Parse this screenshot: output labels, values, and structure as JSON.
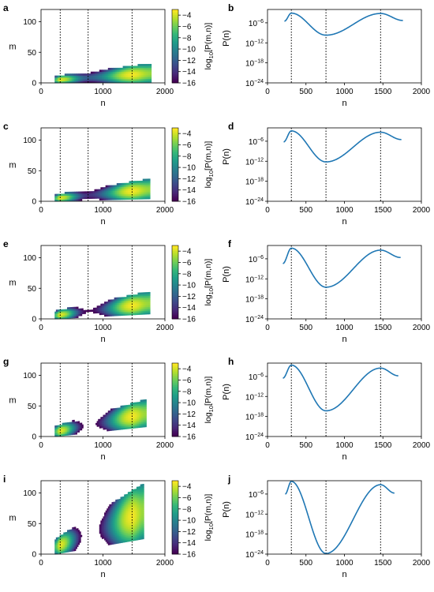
{
  "colormap": [
    "#440154",
    "#482878",
    "#3e4989",
    "#31688e",
    "#26828e",
    "#1f9e89",
    "#35b779",
    "#6ece58",
    "#b5de2b",
    "#fde725"
  ],
  "line_color": "#1f77b4",
  "chart_data": [
    {
      "type": "heatmap",
      "panel": "a",
      "xlabel": "n",
      "ylabel": "m",
      "colorbar_label": "log10[P(m,n)]",
      "xlim": [
        0,
        2000
      ],
      "ylim": [
        0,
        120
      ],
      "xticks": [
        0,
        1000,
        2000
      ],
      "yticks": [
        0,
        50,
        100
      ],
      "clim": [
        -16,
        -3
      ],
      "colorbar_ticks": [
        -4,
        -6,
        -8,
        -10,
        -12,
        -14,
        -16
      ],
      "vlines": [
        310,
        760,
        1470
      ],
      "band": {
        "n_range": [
          220,
          1780
        ],
        "m_center_start": 5,
        "m_center_end": 16,
        "width_start": 5,
        "width_end": 15
      },
      "logP_profile": {
        "n": [
          220,
          310,
          760,
          1470,
          1780
        ],
        "logP": [
          -7,
          -3.5,
          -12,
          -3.2,
          -5
        ]
      }
    },
    {
      "type": "line",
      "panel": "b",
      "xlabel": "n",
      "ylabel": "P(n)",
      "yscale": "log",
      "xlim": [
        0,
        2000
      ],
      "ylim": [
        1e-24,
        0.01
      ],
      "xticks": [
        0,
        500,
        1000,
        1500,
        2000
      ],
      "yticks": [
        "10^-6",
        "10^-12",
        "10^-18",
        "10^-24"
      ],
      "vlines": [
        310,
        760,
        1470
      ],
      "x": [
        220,
        310,
        760,
        1470,
        1760
      ],
      "logy": [
        -5.5,
        -3.1,
        -9.7,
        -3.2,
        -5.3
      ]
    },
    {
      "type": "heatmap",
      "panel": "c",
      "xlabel": "n",
      "ylabel": "m",
      "colorbar_label": "log10[P(m,n)]",
      "xlim": [
        0,
        2000
      ],
      "ylim": [
        0,
        120
      ],
      "xticks": [
        0,
        1000,
        2000
      ],
      "yticks": [
        0,
        50,
        100
      ],
      "clim": [
        -16,
        -3
      ],
      "colorbar_ticks": [
        -4,
        -6,
        -8,
        -10,
        -12,
        -14,
        -16
      ],
      "vlines": [
        310,
        760,
        1470
      ],
      "band": {
        "n_range": [
          220,
          1760
        ],
        "m_center_start": 5,
        "m_center_end": 20,
        "width_start": 5,
        "width_end": 16
      },
      "logP_profile": {
        "n": [
          220,
          310,
          760,
          1470,
          1760
        ],
        "logP": [
          -7,
          -3.5,
          -14,
          -3.2,
          -5
        ]
      }
    },
    {
      "type": "line",
      "panel": "d",
      "xlabel": "n",
      "ylabel": "P(n)",
      "yscale": "log",
      "xlim": [
        0,
        2000
      ],
      "ylim": [
        1e-24,
        0.01
      ],
      "xticks": [
        0,
        500,
        1000,
        1500,
        2000
      ],
      "yticks": [
        "10^-6",
        "10^-12",
        "10^-18",
        "10^-24"
      ],
      "vlines": [
        310,
        760,
        1470
      ],
      "x": [
        210,
        310,
        760,
        1470,
        1740
      ],
      "logy": [
        -6.2,
        -2.9,
        -12.2,
        -3.3,
        -5.5
      ]
    },
    {
      "type": "heatmap",
      "panel": "e",
      "xlabel": "n",
      "ylabel": "m",
      "colorbar_label": "log10[P(m,n)]",
      "xlim": [
        0,
        2000
      ],
      "ylim": [
        0,
        120
      ],
      "xticks": [
        0,
        1000,
        2000
      ],
      "yticks": [
        0,
        50,
        100
      ],
      "clim": [
        -16,
        -3
      ],
      "colorbar_ticks": [
        -4,
        -6,
        -8,
        -10,
        -12,
        -14,
        -16
      ],
      "vlines": [
        310,
        760,
        1470
      ],
      "band": {
        "n_range": [
          220,
          1750
        ],
        "m_center_start": 6,
        "m_center_end": 26,
        "width_start": 6,
        "width_end": 18
      },
      "logP_profile": {
        "n": [
          220,
          310,
          760,
          1470,
          1750
        ],
        "logP": [
          -7,
          -3.5,
          -16,
          -3.2,
          -5
        ]
      }
    },
    {
      "type": "line",
      "panel": "f",
      "xlabel": "n",
      "ylabel": "P(n)",
      "yscale": "log",
      "xlim": [
        0,
        2000
      ],
      "ylim": [
        1e-24,
        0.01
      ],
      "xticks": [
        0,
        500,
        1000,
        1500,
        2000
      ],
      "yticks": [
        "10^-6",
        "10^-12",
        "10^-18",
        "10^-24"
      ],
      "vlines": [
        310,
        760,
        1470
      ],
      "x": [
        200,
        310,
        760,
        1470,
        1730
      ],
      "logy": [
        -7.4,
        -2.8,
        -14.5,
        -3.4,
        -5.6
      ]
    },
    {
      "type": "heatmap",
      "panel": "g",
      "xlabel": "n",
      "ylabel": "m",
      "colorbar_label": "log10[P(m,n)]",
      "xlim": [
        0,
        2000
      ],
      "ylim": [
        0,
        120
      ],
      "xticks": [
        0,
        1000,
        2000
      ],
      "yticks": [
        0,
        50,
        100
      ],
      "clim": [
        -16,
        -3
      ],
      "colorbar_ticks": [
        -4,
        -6,
        -8,
        -10,
        -12,
        -14,
        -16
      ],
      "vlines": [
        310,
        760,
        1470
      ],
      "band": {
        "n_range": [
          220,
          1700
        ],
        "m_center_start": 8,
        "m_center_end": 38,
        "width_start": 8,
        "width_end": 22
      },
      "logP_profile": {
        "n": [
          220,
          310,
          760,
          1470,
          1700
        ],
        "logP": [
          -7,
          -3.5,
          -17,
          -3.2,
          -5
        ]
      }
    },
    {
      "type": "line",
      "panel": "h",
      "xlabel": "n",
      "ylabel": "P(n)",
      "yscale": "log",
      "xlim": [
        0,
        2000
      ],
      "ylim": [
        1e-24,
        0.01
      ],
      "xticks": [
        0,
        500,
        1000,
        1500,
        2000
      ],
      "yticks": [
        "10^-6",
        "10^-12",
        "10^-18",
        "10^-24"
      ],
      "vlines": [
        310,
        760,
        1470
      ],
      "x": [
        200,
        310,
        760,
        1470,
        1700
      ],
      "logy": [
        -6.5,
        -2.6,
        -16.3,
        -3.5,
        -5.8
      ]
    },
    {
      "type": "heatmap",
      "panel": "i",
      "xlabel": "n",
      "ylabel": "m",
      "colorbar_label": "log10[P(m,n)]",
      "xlim": [
        0,
        2000
      ],
      "ylim": [
        0,
        120
      ],
      "xticks": [
        0,
        1000,
        2000
      ],
      "yticks": [
        0,
        50,
        100
      ],
      "clim": [
        -16,
        -3
      ],
      "colorbar_ticks": [
        -4,
        -6,
        -8,
        -10,
        -12,
        -14,
        -16
      ],
      "vlines": [
        310,
        760,
        1470
      ],
      "band": {
        "n_range": [
          220,
          1650
        ],
        "m_center_start": 12,
        "m_center_end": 70,
        "width_start": 12,
        "width_end": 45
      },
      "logP_profile": {
        "n": [
          220,
          310,
          760,
          1470,
          1650
        ],
        "logP": [
          -7,
          -3.5,
          -18,
          -3.2,
          -5
        ]
      }
    },
    {
      "type": "line",
      "panel": "j",
      "xlabel": "n",
      "ylabel": "P(n)",
      "yscale": "log",
      "xlim": [
        0,
        2000
      ],
      "ylim": [
        1e-24,
        0.01
      ],
      "xticks": [
        0,
        500,
        1000,
        1500,
        2000
      ],
      "yticks": [
        "10^-6",
        "10^-12",
        "10^-18",
        "10^-24"
      ],
      "vlines": [
        310,
        760,
        1470
      ],
      "x": [
        230,
        310,
        760,
        1470,
        1650
      ],
      "logy": [
        -6.0,
        -2.2,
        -23.8,
        -3.2,
        -5.7
      ]
    }
  ]
}
